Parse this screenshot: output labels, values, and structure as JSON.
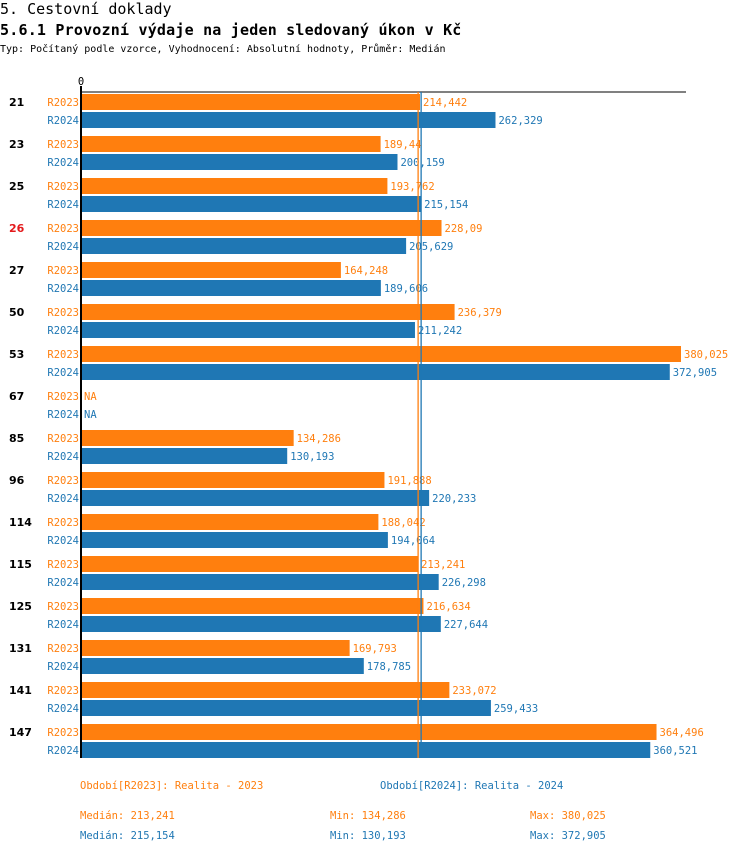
{
  "header": {
    "section": "5. Cestovní doklady",
    "title": "5.6.1 Provozní výdaje na jeden sledovaný úkon v Kč",
    "subtitle": "Typ: Počítaný podle vzorce, Vyhodnocení: Absolutní hodnoty, Průměr: Medián"
  },
  "colors": {
    "R2023": "#ff7f0e",
    "R2024": "#1f77b4",
    "highlight_group": "#e41a1c",
    "axis": "#000000"
  },
  "chart_data": {
    "type": "bar",
    "orientation": "horizontal",
    "title": "5.6.1 Provozní výdaje na jeden sledovaný úkon v Kč",
    "xlabel": "",
    "ylabel": "",
    "x_tick_labels": [
      "0"
    ],
    "xlim": [
      0,
      380025
    ],
    "grid": false,
    "highlighted_category": "26",
    "categories": [
      "21",
      "23",
      "25",
      "26",
      "27",
      "50",
      "53",
      "67",
      "85",
      "96",
      "114",
      "115",
      "125",
      "131",
      "141",
      "147"
    ],
    "series": [
      {
        "name": "R2023",
        "values": [
          214442,
          189440,
          193762,
          228090,
          164248,
          236379,
          380025,
          null,
          134286,
          191888,
          188042,
          213241,
          216634,
          169793,
          233072,
          364496
        ],
        "labels": [
          "214,442",
          "189,44",
          "193,762",
          "228,09",
          "164,248",
          "236,379",
          "380,025",
          "NA",
          "134,286",
          "191,888",
          "188,042",
          "213,241",
          "216,634",
          "169,793",
          "233,072",
          "364,496"
        ],
        "median": 213241
      },
      {
        "name": "R2024",
        "values": [
          262329,
          200159,
          215154,
          205629,
          189606,
          211242,
          372905,
          null,
          130193,
          220233,
          194064,
          226298,
          227644,
          178785,
          259433,
          360521
        ],
        "labels": [
          "262,329",
          "200,159",
          "215,154",
          "205,629",
          "189,606",
          "211,242",
          "372,905",
          "NA",
          "130,193",
          "220,233",
          "194,064",
          "226,298",
          "227,644",
          "178,785",
          "259,433",
          "360,521"
        ],
        "median": 215154
      }
    ]
  },
  "legend": {
    "R2023": "Období[R2023]: Realita - 2023",
    "R2024": "Období[R2024]: Realita - 2024"
  },
  "stats": {
    "R2023": {
      "median": "Medián: 213,241",
      "min": "Min: 134,286",
      "max": "Max: 380,025"
    },
    "R2024": {
      "median": "Medián: 215,154",
      "min": "Min: 130,193",
      "max": "Max: 372,905"
    }
  }
}
